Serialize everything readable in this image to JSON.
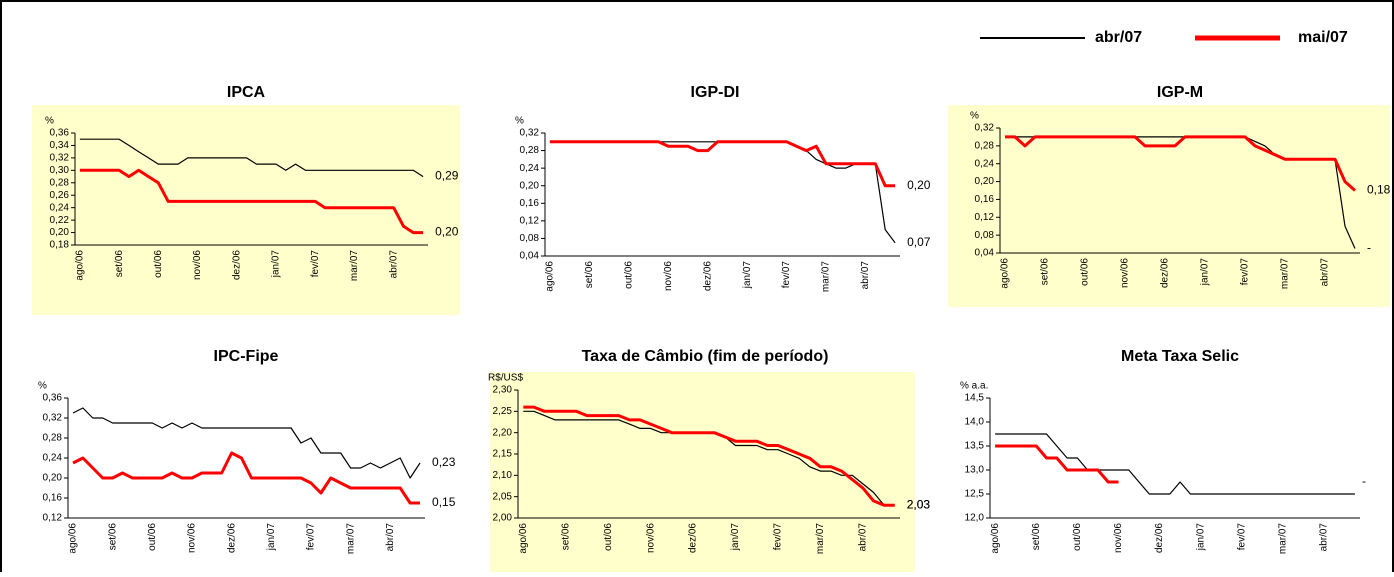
{
  "chart_data": [
    {
      "type": "line",
      "title": "IPCA",
      "y_unit": "%",
      "background": "#ffffcc",
      "categories": [
        "ago/06",
        null,
        null,
        null,
        "set/06",
        null,
        null,
        null,
        "out/06",
        null,
        null,
        null,
        "nov/06",
        null,
        null,
        null,
        "dez/06",
        null,
        null,
        null,
        "jan/07",
        null,
        null,
        null,
        "fev/07",
        null,
        null,
        null,
        "mar/07",
        null,
        null,
        null,
        "abr/07",
        null,
        null,
        null
      ],
      "ylim": [
        0.18,
        0.36
      ],
      "yticks": [
        {
          "value": 0.18,
          "label": "0,18"
        },
        {
          "value": 0.2,
          "label": "0,20"
        },
        {
          "value": 0.22,
          "label": "0,22"
        },
        {
          "value": 0.24,
          "label": "0,24"
        },
        {
          "value": 0.26,
          "label": "0,26"
        },
        {
          "value": 0.28,
          "label": "0,28"
        },
        {
          "value": 0.3,
          "label": "0,30"
        },
        {
          "value": 0.32,
          "label": "0,32"
        },
        {
          "value": 0.34,
          "label": "0,34"
        },
        {
          "value": 0.36,
          "label": "0,36"
        }
      ],
      "series": [
        {
          "name": "abr/07",
          "color": "#000000",
          "end_label": "0,29",
          "values": [
            0.35,
            0.35,
            0.35,
            0.35,
            0.35,
            0.34,
            0.33,
            0.32,
            0.31,
            0.31,
            0.31,
            0.32,
            0.32,
            0.32,
            0.32,
            0.32,
            0.32,
            0.32,
            0.31,
            0.31,
            0.31,
            0.3,
            0.31,
            0.3,
            0.3,
            0.3,
            0.3,
            0.3,
            0.3,
            0.3,
            0.3,
            0.3,
            0.3,
            0.3,
            0.3,
            0.29
          ]
        },
        {
          "name": "mai/07",
          "color": "#ff0000",
          "end_label": "0,20",
          "values": [
            0.3,
            0.3,
            0.3,
            0.3,
            0.3,
            0.29,
            0.3,
            0.29,
            0.28,
            0.25,
            0.25,
            0.25,
            0.25,
            0.25,
            0.25,
            0.25,
            0.25,
            0.25,
            0.25,
            0.25,
            0.25,
            0.25,
            0.25,
            0.25,
            0.25,
            0.24,
            0.24,
            0.24,
            0.24,
            0.24,
            0.24,
            0.24,
            0.24,
            0.21,
            0.2,
            0.2
          ]
        }
      ]
    },
    {
      "type": "line",
      "title": "IGP-DI",
      "y_unit": "%",
      "background": "#ffffff",
      "categories": [
        "ago/06",
        null,
        null,
        null,
        "set/06",
        null,
        null,
        null,
        "out/06",
        null,
        null,
        null,
        "nov/06",
        null,
        null,
        null,
        "dez/06",
        null,
        null,
        null,
        "jan/07",
        null,
        null,
        null,
        "fev/07",
        null,
        null,
        null,
        "mar/07",
        null,
        null,
        null,
        "abr/07",
        null,
        null,
        null
      ],
      "ylim": [
        0.04,
        0.32
      ],
      "yticks": [
        {
          "value": 0.04,
          "label": "0,04"
        },
        {
          "value": 0.08,
          "label": "0,08"
        },
        {
          "value": 0.12,
          "label": "0,12"
        },
        {
          "value": 0.16,
          "label": "0,16"
        },
        {
          "value": 0.2,
          "label": "0,20"
        },
        {
          "value": 0.24,
          "label": "0,24"
        },
        {
          "value": 0.28,
          "label": "0,28"
        },
        {
          "value": 0.32,
          "label": "0,32"
        }
      ],
      "series": [
        {
          "name": "abr/07",
          "color": "#000000",
          "end_label": "0,07",
          "values": [
            0.3,
            0.3,
            0.3,
            0.3,
            0.3,
            0.3,
            0.3,
            0.3,
            0.3,
            0.3,
            0.3,
            0.3,
            0.3,
            0.3,
            0.3,
            0.3,
            0.3,
            0.3,
            0.3,
            0.3,
            0.3,
            0.3,
            0.3,
            0.3,
            0.3,
            0.29,
            0.28,
            0.26,
            0.25,
            0.24,
            0.24,
            0.25,
            0.25,
            0.25,
            0.1,
            0.07
          ]
        },
        {
          "name": "mai/07",
          "color": "#ff0000",
          "end_label": "0,20",
          "values": [
            0.3,
            0.3,
            0.3,
            0.3,
            0.3,
            0.3,
            0.3,
            0.3,
            0.3,
            0.3,
            0.3,
            0.3,
            0.29,
            0.29,
            0.29,
            0.28,
            0.28,
            0.3,
            0.3,
            0.3,
            0.3,
            0.3,
            0.3,
            0.3,
            0.3,
            0.29,
            0.28,
            0.29,
            0.25,
            0.25,
            0.25,
            0.25,
            0.25,
            0.25,
            0.2,
            0.2
          ]
        }
      ]
    },
    {
      "type": "line",
      "title": "IGP-M",
      "y_unit": "%",
      "background": "#ffffcc",
      "categories": [
        "ago/06",
        null,
        null,
        null,
        "set/06",
        null,
        null,
        null,
        "out/06",
        null,
        null,
        null,
        "nov/06",
        null,
        null,
        null,
        "dez/06",
        null,
        null,
        null,
        "jan/07",
        null,
        null,
        null,
        "fev/07",
        null,
        null,
        null,
        "mar/07",
        null,
        null,
        null,
        "abr/07",
        null,
        null,
        null
      ],
      "ylim": [
        0.04,
        0.32
      ],
      "yticks": [
        {
          "value": 0.04,
          "label": "0,04"
        },
        {
          "value": 0.08,
          "label": "0,08"
        },
        {
          "value": 0.12,
          "label": "0,12"
        },
        {
          "value": 0.16,
          "label": "0,16"
        },
        {
          "value": 0.2,
          "label": "0,20"
        },
        {
          "value": 0.24,
          "label": "0,24"
        },
        {
          "value": 0.28,
          "label": "0,28"
        },
        {
          "value": 0.32,
          "label": "0,32"
        }
      ],
      "series": [
        {
          "name": "abr/07",
          "color": "#000000",
          "end_label": "-",
          "values": [
            0.3,
            0.3,
            0.3,
            0.3,
            0.3,
            0.3,
            0.3,
            0.3,
            0.3,
            0.3,
            0.3,
            0.3,
            0.3,
            0.3,
            0.3,
            0.3,
            0.3,
            0.3,
            0.3,
            0.3,
            0.3,
            0.3,
            0.3,
            0.3,
            0.3,
            0.29,
            0.28,
            0.26,
            0.25,
            0.25,
            0.25,
            0.25,
            0.25,
            0.25,
            0.1,
            0.05
          ]
        },
        {
          "name": "mai/07",
          "color": "#ff0000",
          "end_label": "0,18",
          "values": [
            0.3,
            0.3,
            0.28,
            0.3,
            0.3,
            0.3,
            0.3,
            0.3,
            0.3,
            0.3,
            0.3,
            0.3,
            0.3,
            0.3,
            0.28,
            0.28,
            0.28,
            0.28,
            0.3,
            0.3,
            0.3,
            0.3,
            0.3,
            0.3,
            0.3,
            0.28,
            0.27,
            0.26,
            0.25,
            0.25,
            0.25,
            0.25,
            0.25,
            0.25,
            0.2,
            0.18
          ]
        }
      ]
    },
    {
      "type": "line",
      "title": "IPC-Fipe",
      "y_unit": "%",
      "background": "#ffffff",
      "categories": [
        "ago/06",
        null,
        null,
        null,
        "set/06",
        null,
        null,
        null,
        "out/06",
        null,
        null,
        null,
        "nov/06",
        null,
        null,
        null,
        "dez/06",
        null,
        null,
        null,
        "jan/07",
        null,
        null,
        null,
        "fev/07",
        null,
        null,
        null,
        "mar/07",
        null,
        null,
        null,
        "abr/07",
        null,
        null,
        null
      ],
      "ylim": [
        0.12,
        0.36
      ],
      "yticks": [
        {
          "value": 0.12,
          "label": "0,12"
        },
        {
          "value": 0.16,
          "label": "0,16"
        },
        {
          "value": 0.2,
          "label": "0,20"
        },
        {
          "value": 0.24,
          "label": "0,24"
        },
        {
          "value": 0.28,
          "label": "0,28"
        },
        {
          "value": 0.32,
          "label": "0,32"
        },
        {
          "value": 0.36,
          "label": "0,36"
        }
      ],
      "series": [
        {
          "name": "abr/07",
          "color": "#000000",
          "end_label": "0,23",
          "values": [
            0.33,
            0.34,
            0.32,
            0.32,
            0.31,
            0.31,
            0.31,
            0.31,
            0.31,
            0.3,
            0.31,
            0.3,
            0.31,
            0.3,
            0.3,
            0.3,
            0.3,
            0.3,
            0.3,
            0.3,
            0.3,
            0.3,
            0.3,
            0.27,
            0.28,
            0.25,
            0.25,
            0.25,
            0.22,
            0.22,
            0.23,
            0.22,
            0.23,
            0.24,
            0.2,
            0.23
          ]
        },
        {
          "name": "mai/07",
          "color": "#ff0000",
          "end_label": "0,15",
          "values": [
            0.23,
            0.24,
            0.22,
            0.2,
            0.2,
            0.21,
            0.2,
            0.2,
            0.2,
            0.2,
            0.21,
            0.2,
            0.2,
            0.21,
            0.21,
            0.21,
            0.25,
            0.24,
            0.2,
            0.2,
            0.2,
            0.2,
            0.2,
            0.2,
            0.19,
            0.17,
            0.2,
            0.19,
            0.18,
            0.18,
            0.18,
            0.18,
            0.18,
            0.18,
            0.15,
            0.15
          ]
        }
      ]
    },
    {
      "type": "line",
      "title": "Taxa de Câmbio (fim de período)",
      "y_unit": "R$/US$",
      "background": "#ffffcc",
      "categories": [
        "ago/06",
        null,
        null,
        null,
        "set/06",
        null,
        null,
        null,
        "out/06",
        null,
        null,
        null,
        "nov/06",
        null,
        null,
        null,
        "dez/06",
        null,
        null,
        null,
        "jan/07",
        null,
        null,
        null,
        "fev/07",
        null,
        null,
        null,
        "mar/07",
        null,
        null,
        null,
        "abr/07",
        null,
        null,
        null
      ],
      "ylim": [
        2.0,
        2.3
      ],
      "yticks": [
        {
          "value": 2.0,
          "label": "2,00"
        },
        {
          "value": 2.05,
          "label": "2,05"
        },
        {
          "value": 2.1,
          "label": "2,10"
        },
        {
          "value": 2.15,
          "label": "2,15"
        },
        {
          "value": 2.2,
          "label": "2,20"
        },
        {
          "value": 2.25,
          "label": "2,25"
        },
        {
          "value": 2.3,
          "label": "2,30"
        }
      ],
      "series": [
        {
          "name": "abr/07",
          "color": "#000000",
          "end_label": "2,03",
          "values": [
            2.25,
            2.25,
            2.24,
            2.23,
            2.23,
            2.23,
            2.23,
            2.23,
            2.23,
            2.23,
            2.22,
            2.21,
            2.21,
            2.2,
            2.2,
            2.2,
            2.2,
            2.2,
            2.2,
            2.19,
            2.17,
            2.17,
            2.17,
            2.16,
            2.16,
            2.15,
            2.14,
            2.12,
            2.11,
            2.11,
            2.1,
            2.1,
            2.08,
            2.06,
            2.03,
            2.03
          ]
        },
        {
          "name": "mai/07",
          "color": "#ff0000",
          "end_label": "2,03",
          "values": [
            2.26,
            2.26,
            2.25,
            2.25,
            2.25,
            2.25,
            2.24,
            2.24,
            2.24,
            2.24,
            2.23,
            2.23,
            2.22,
            2.21,
            2.2,
            2.2,
            2.2,
            2.2,
            2.2,
            2.19,
            2.18,
            2.18,
            2.18,
            2.17,
            2.17,
            2.16,
            2.15,
            2.14,
            2.12,
            2.12,
            2.11,
            2.09,
            2.07,
            2.04,
            2.03,
            2.03
          ]
        }
      ]
    },
    {
      "type": "line",
      "title": "Meta Taxa Selic",
      "y_unit": "% a.a.",
      "background": "#ffffff",
      "categories": [
        "ago/06",
        null,
        null,
        null,
        "set/06",
        null,
        null,
        null,
        "out/06",
        null,
        null,
        null,
        "nov/06",
        null,
        null,
        null,
        "dez/06",
        null,
        null,
        null,
        "jan/07",
        null,
        null,
        null,
        "fev/07",
        null,
        null,
        null,
        "mar/07",
        null,
        null,
        null,
        "abr/07",
        null,
        null,
        null
      ],
      "ylim": [
        12.0,
        14.5
      ],
      "yticks": [
        {
          "value": 12.0,
          "label": "12,0"
        },
        {
          "value": 12.5,
          "label": "12,5"
        },
        {
          "value": 13.0,
          "label": "13,0"
        },
        {
          "value": 13.5,
          "label": "13,5"
        },
        {
          "value": 14.0,
          "label": "14,0"
        },
        {
          "value": 14.5,
          "label": "14,5"
        }
      ],
      "series": [
        {
          "name": "abr/07",
          "color": "#000000",
          "values": [
            13.75,
            13.75,
            13.75,
            13.75,
            13.75,
            13.75,
            13.5,
            13.25,
            13.25,
            13.0,
            13.0,
            13.0,
            13.0,
            13.0,
            12.75,
            12.5,
            12.5,
            12.5,
            12.75,
            12.5,
            12.5,
            12.5,
            12.5,
            12.5,
            12.5,
            12.5,
            12.5,
            12.5,
            12.5,
            12.5,
            12.5,
            12.5,
            12.5,
            12.5,
            12.5,
            12.5
          ]
        },
        {
          "name": "mai/07",
          "color": "#ff0000",
          "end_label": "-",
          "values": [
            13.5,
            13.5,
            13.5,
            13.5,
            13.5,
            13.25,
            13.25,
            13.0,
            13.0,
            13.0,
            13.0,
            12.75,
            12.75,
            null,
            null,
            null,
            null,
            null,
            null,
            null,
            null,
            null,
            null,
            null,
            null,
            null,
            null,
            null,
            null,
            null,
            null,
            null,
            null,
            null,
            null,
            null
          ]
        }
      ]
    }
  ]
}
